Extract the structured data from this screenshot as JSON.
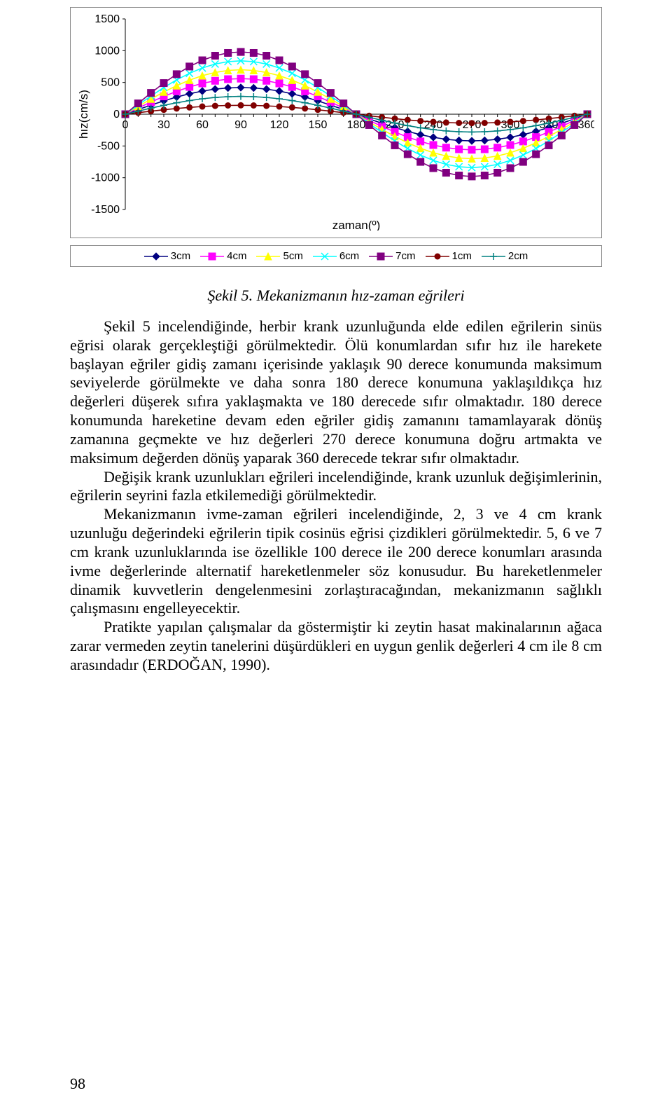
{
  "chart": {
    "type": "line",
    "x_label": "zaman(º)",
    "y_label": "hız(cm/s)",
    "label_font": "Arial",
    "label_fontsize": 17,
    "tick_fontsize": 16,
    "x_ticks": [
      0,
      30,
      60,
      90,
      120,
      150,
      180,
      210,
      240,
      270,
      300,
      330,
      360
    ],
    "y_ticks": [
      -1500,
      -1000,
      -500,
      0,
      500,
      1000,
      1500
    ],
    "xlim": [
      0,
      360
    ],
    "ylim": [
      -1500,
      1500
    ],
    "x_step_degrees": 10,
    "grid": false,
    "background_color": "#ffffff",
    "axis_color": "#000000",
    "series": [
      {
        "name": "3cm",
        "amplitude": 420,
        "color": "#000080",
        "marker": "diamond",
        "marker_size": 5
      },
      {
        "name": "4cm",
        "amplitude": 560,
        "color": "#ff00ff",
        "marker": "square",
        "marker_size": 5
      },
      {
        "name": "5cm",
        "amplitude": 700,
        "color": "#ffff00",
        "marker": "triangle",
        "marker_size": 5
      },
      {
        "name": "6cm",
        "amplitude": 840,
        "color": "#00ffff",
        "marker": "x",
        "marker_size": 5
      },
      {
        "name": "7cm",
        "amplitude": 980,
        "color": "#800080",
        "marker": "square",
        "marker_size": 5
      },
      {
        "name": "1cm",
        "amplitude": 140,
        "color": "#800000",
        "marker": "circle",
        "marker_size": 4
      },
      {
        "name": "2cm",
        "amplitude": 280,
        "color": "#008080",
        "marker": "plus",
        "marker_size": 5
      }
    ],
    "line_width": 1.6,
    "legend_order": [
      "3cm",
      "4cm",
      "5cm",
      "6cm",
      "7cm",
      "1cm",
      "2cm"
    ]
  },
  "caption": "Şekil 5. Mekanizmanın hız-zaman eğrileri",
  "paragraphs": [
    "Şekil 5 incelendiğinde, herbir krank uzunluğunda elde edilen eğrilerin sinüs eğrisi olarak gerçekleştiği görülmektedir. Ölü konumlardan sıfır hız ile harekete başlayan eğriler gidiş zamanı içerisinde yaklaşık 90 derece konumunda maksimum seviyelerde görülmekte ve daha sonra 180 derece konumuna yaklaşıldıkça hız değerleri düşerek sıfıra yaklaşmakta ve 180 derecede sıfır olmaktadır. 180 derece konumunda hareketine devam eden eğriler gidiş zamanını tamamlayarak dönüş zamanına geçmekte ve hız değerleri 270 derece konumuna doğru artmakta ve maksimum değerden dönüş yaparak 360 derecede tekrar sıfır olmaktadır.",
    "Değişik krank uzunlukları eğrileri incelendiğinde, krank uzunluk değişimlerinin, eğrilerin seyrini fazla etkilemediği görülmektedir.",
    "Mekanizmanın ivme-zaman eğrileri incelendiğinde, 2, 3 ve 4 cm krank uzunluğu değerindeki eğrilerin tipik cosinüs eğrisi çizdikleri görülmektedir. 5, 6 ve 7 cm krank uzunluklarında ise özellikle 100 derece ile 200 derece konumları arasında ivme değerlerinde alternatif hareketlenmeler söz konusudur. Bu hareketlenmeler dinamik kuvvetlerin dengelenmesini zorlaştıracağından, mekanizmanın sağlıklı çalışmasını engelleyecektir.",
    "Pratikte yapılan çalışmalar da göstermiştir ki zeytin hasat makinalarının ağaca zarar vermeden zeytin tanelerini düşürdükleri en uygun genlik değerleri 4 cm ile 8 cm arasındadır (ERDOĞAN, 1990)."
  ],
  "page_number": "98"
}
